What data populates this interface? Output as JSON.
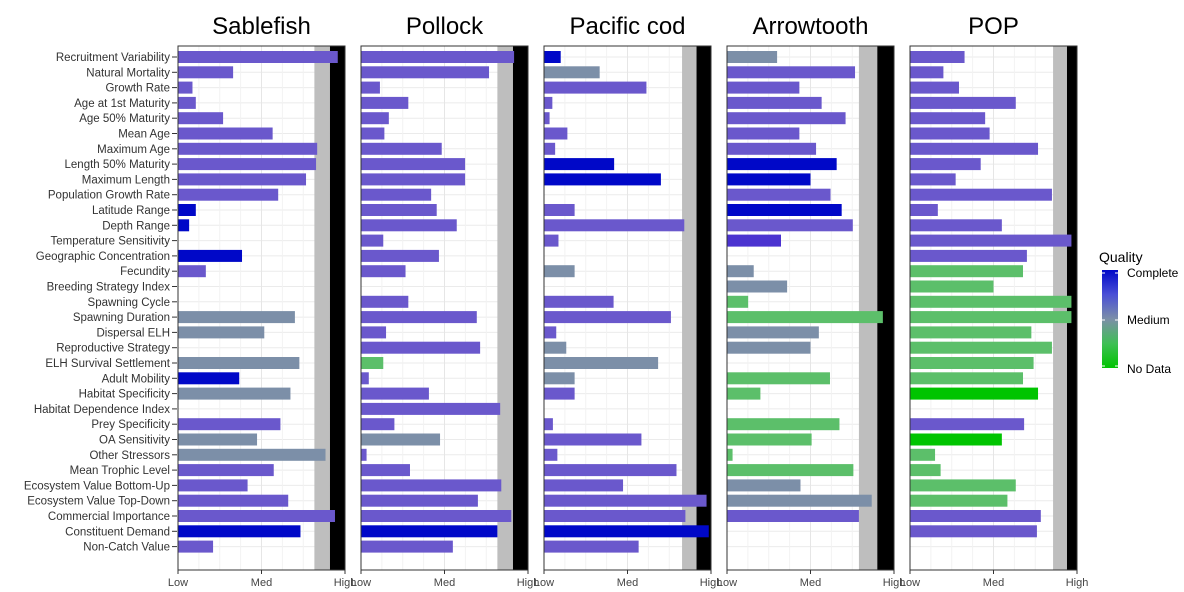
{
  "chart_data": {
    "type": "bar",
    "orientation": "horizontal",
    "scale_min": 0,
    "scale_max": 3,
    "x_tick_labels": [
      "Low",
      "Med",
      "High"
    ],
    "x_ticks": [
      0,
      1.5,
      3
    ],
    "grid": true,
    "legend_placement": "right",
    "colors": {
      "Complete": "#0008C8",
      "Medium": "#7C8FA8",
      "No Data": "#00C400",
      "bar_default": "#6A58CC",
      "gray_band": "#BEBEBE",
      "black_band": "#000000"
    },
    "legend": {
      "title": "Quality",
      "labels": [
        "Complete",
        "Medium",
        "No Data"
      ]
    },
    "categories": [
      "Recruitment Variability",
      "Natural Mortality",
      "Growth Rate",
      "Age at 1st Maturity",
      "Age 50% Maturity",
      "Mean Age",
      "Maximum Age",
      "Length 50% Maturity",
      "Maximum Length",
      "Population Growth Rate",
      "Latitude Range",
      "Depth Range",
      "Temperature Sensitivity",
      "Geographic Concentration",
      "Fecundity",
      "Breeding Strategy Index",
      "Spawning Cycle",
      "Spawning Duration",
      "Dispersal ELH",
      "Reproductive Strategy",
      "ELH Survival Settlement",
      "Adult Mobility",
      "Habitat Specificity",
      "Habitat Dependence Index",
      "Prey Specificity",
      "OA Sensitivity",
      "Other Stressors",
      "Mean Trophic Level",
      "Ecosystem Value Bottom-Up",
      "Ecosystem Value Top-Down",
      "Commercial Importance",
      "Constituent Demand",
      "Non-Catch Value"
    ],
    "panels": [
      {
        "title": "Sablefish",
        "gray_band": [
          2.45,
          2.73
        ],
        "black_band": [
          2.73,
          3.0
        ],
        "values": [
          2.87,
          0.99,
          0.26,
          0.32,
          0.81,
          1.7,
          2.5,
          2.48,
          2.3,
          1.8,
          0.32,
          0.2,
          null,
          1.15,
          0.5,
          null,
          null,
          2.1,
          1.55,
          null,
          2.18,
          1.1,
          2.02,
          null,
          1.84,
          1.42,
          2.65,
          1.72,
          1.25,
          1.98,
          2.82,
          2.2,
          0.63
        ],
        "quality": [
          "c",
          "c",
          "c",
          "c",
          "c",
          "c",
          "c",
          "c",
          "c",
          "c",
          "C",
          "C",
          null,
          "C",
          "c",
          null,
          null,
          "m",
          "m",
          null,
          "m",
          "C",
          "m",
          null,
          "c",
          "m",
          "m",
          "c",
          "c",
          "c",
          "c",
          "C",
          "c"
        ]
      },
      {
        "title": "Pollock",
        "gray_band": [
          2.45,
          2.73
        ],
        "black_band": [
          2.73,
          3.0
        ],
        "values": [
          2.75,
          2.3,
          0.34,
          0.85,
          0.5,
          0.42,
          1.45,
          1.87,
          1.87,
          1.26,
          1.36,
          1.72,
          0.4,
          1.4,
          0.8,
          null,
          0.85,
          2.08,
          0.45,
          2.14,
          0.4,
          0.14,
          1.22,
          2.5,
          0.6,
          1.42,
          0.1,
          0.88,
          2.52,
          2.1,
          2.7,
          2.45,
          1.65
        ],
        "quality": [
          "c",
          "c",
          "c",
          "c",
          "c",
          "c",
          "c",
          "c",
          "c",
          "c",
          "c",
          "c",
          "c",
          "c",
          "c",
          null,
          "c",
          "c",
          "c",
          "c",
          "g",
          "c",
          "c",
          "c",
          "c",
          "m",
          "c",
          "c",
          "c",
          "c",
          "c",
          "C",
          "c"
        ]
      },
      {
        "title": "Pacific cod",
        "gray_band": [
          2.48,
          2.74
        ],
        "black_band": [
          2.74,
          3.0
        ],
        "values": [
          0.3,
          1.0,
          1.84,
          0.15,
          0.1,
          0.42,
          0.2,
          1.26,
          2.1,
          null,
          0.55,
          2.52,
          0.26,
          null,
          0.55,
          null,
          1.25,
          2.28,
          0.22,
          0.4,
          2.05,
          0.55,
          0.55,
          null,
          0.16,
          1.75,
          0.24,
          2.38,
          1.42,
          2.92,
          2.54,
          2.96,
          1.7
        ],
        "quality": [
          "C",
          "m",
          "c",
          "c",
          "c",
          "c",
          "c",
          "C",
          "C",
          null,
          "c",
          "c",
          "c",
          null,
          "m",
          null,
          "c",
          "c",
          "c",
          "m",
          "m",
          "m",
          "c",
          null,
          "c",
          "c",
          "c",
          "c",
          "c",
          "c",
          "c",
          "C",
          "c"
        ]
      },
      {
        "title": "Arrowtooth",
        "gray_band": [
          2.37,
          2.7
        ],
        "black_band": [
          2.7,
          3.0
        ],
        "values": [
          0.9,
          2.3,
          1.3,
          1.7,
          2.13,
          1.3,
          1.6,
          1.97,
          1.5,
          1.86,
          2.06,
          2.26,
          0.97,
          null,
          0.48,
          1.08,
          0.38,
          2.8,
          1.65,
          1.5,
          null,
          1.85,
          0.6,
          null,
          2.02,
          1.52,
          0.1,
          2.27,
          1.32,
          2.6,
          2.37,
          null,
          null
        ],
        "quality": [
          "m",
          "c",
          "c",
          "c",
          "c",
          "c",
          "c",
          "C",
          "C",
          "c",
          "C",
          "c",
          "v",
          null,
          "m",
          "m",
          "g",
          "g",
          "m",
          "m",
          null,
          "g",
          "g",
          null,
          "g",
          "g",
          "g",
          "g",
          "m",
          "m",
          "c",
          null,
          null
        ]
      },
      {
        "title": "POP",
        "gray_band": [
          2.57,
          2.82
        ],
        "black_band": [
          2.82,
          3.0
        ],
        "values": [
          0.98,
          0.6,
          0.88,
          1.9,
          1.35,
          1.43,
          2.3,
          1.27,
          0.82,
          2.55,
          0.5,
          1.65,
          2.9,
          2.1,
          2.03,
          1.5,
          2.9,
          2.9,
          2.18,
          2.55,
          2.22,
          2.03,
          2.3,
          null,
          2.05,
          1.65,
          0.45,
          0.55,
          1.9,
          1.75,
          2.35,
          2.28,
          null
        ],
        "quality": [
          "c",
          "c",
          "c",
          "c",
          "c",
          "c",
          "c",
          "c",
          "c",
          "c",
          "c",
          "c",
          "c",
          "c",
          "g",
          "g",
          "g",
          "g",
          "g",
          "g",
          "g",
          "g",
          "G",
          null,
          "c",
          "G",
          "g",
          "g",
          "g",
          "g",
          "c",
          "c",
          null
        ]
      }
    ]
  }
}
